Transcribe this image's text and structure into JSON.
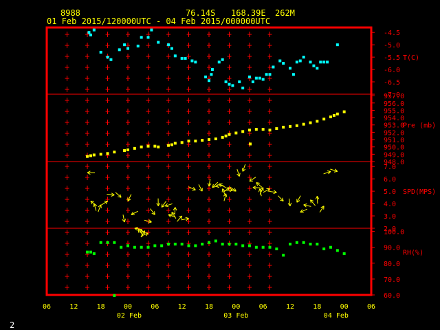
{
  "header": {
    "station": "8988",
    "lat": "76.14S",
    "lon": "168.39E",
    "elev": "262M",
    "period": "01 Feb 2015/120000UTC - 04 Feb 2015/000000UTC"
  },
  "page_number": "2",
  "colors": {
    "frame": "#ff0000",
    "text": "#ffff00",
    "temp": "#00ffff",
    "pres": "#ffff00",
    "wind": "#ffff00",
    "rh": "#00ff00",
    "label": "#ff0000"
  },
  "chart_data": [
    {
      "type": "scatter",
      "ylabel": "T(C)",
      "yticks": [
        "-4.5",
        "-5.0",
        "-5.5",
        "-6.0",
        "-6.5",
        "-7.0"
      ],
      "ylim": [
        -7.0,
        -4.3
      ],
      "series": [
        {
          "x_hours": [
            12.5,
            13,
            14,
            16,
            18,
            19,
            21.5,
            23,
            24,
            27,
            28,
            30,
            31,
            33,
            36,
            37,
            38,
            40,
            41,
            43,
            44,
            47,
            48,
            48.7,
            49,
            51,
            52,
            53,
            54,
            55,
            57,
            58,
            60,
            61,
            62,
            63,
            64,
            65,
            66,
            67,
            69,
            70,
            72,
            73,
            74,
            75,
            76,
            78,
            79,
            80,
            81,
            82,
            83,
            86
          ],
          "values": [
            -4.5,
            -4.6,
            -4.4,
            -5.3,
            -5.5,
            -5.6,
            -5.2,
            -5.0,
            -5.15,
            -5.05,
            -4.7,
            -4.7,
            -4.4,
            -4.9,
            -5.0,
            -5.15,
            -5.45,
            -5.55,
            -5.55,
            -5.65,
            -5.7,
            -6.3,
            -6.45,
            -6.2,
            -6.0,
            -5.7,
            -5.6,
            -6.5,
            -6.6,
            -6.65,
            -6.5,
            -6.75,
            -6.3,
            -6.5,
            -6.35,
            -6.35,
            -6.4,
            -6.2,
            -6.2,
            -5.9,
            -5.65,
            -5.75,
            -5.95,
            -6.2,
            -5.7,
            -5.65,
            -5.5,
            -5.7,
            -5.85,
            -5.95,
            -5.7,
            -5.7,
            -5.7,
            -5.0
          ]
        }
      ]
    },
    {
      "type": "scatter",
      "ylabel": "Pre (mb)",
      "yticks": [
        "957.0",
        "956.0",
        "955.0",
        "954.0",
        "953.0",
        "952.0",
        "951.0",
        "950.0",
        "949.0",
        "948.0"
      ],
      "ylim": [
        948.0,
        957.2
      ],
      "series": [
        {
          "x_hours": [
            12,
            13,
            14,
            16,
            18,
            20,
            23,
            24,
            26,
            28,
            30,
            32,
            33,
            36,
            37,
            38,
            40,
            42,
            44,
            46,
            48,
            50,
            52,
            53,
            54,
            56,
            58,
            60,
            60.2,
            62,
            64,
            66,
            68,
            70,
            72,
            74,
            76,
            78,
            80,
            82,
            84,
            85,
            86,
            88
          ],
          "values": [
            948.7,
            948.8,
            948.9,
            949.0,
            949.1,
            949.3,
            949.5,
            949.6,
            949.8,
            950.0,
            950.1,
            950.1,
            950.0,
            950.2,
            950.3,
            950.5,
            950.6,
            950.8,
            950.8,
            950.9,
            951.0,
            951.1,
            951.3,
            951.5,
            951.7,
            951.9,
            952.1,
            952.3,
            950.4,
            952.4,
            952.4,
            952.3,
            952.5,
            952.7,
            952.8,
            952.9,
            953.1,
            953.3,
            953.5,
            953.8,
            954.1,
            954.3,
            954.5,
            954.8
          ]
        }
      ]
    },
    {
      "type": "scatter",
      "ylabel": "SPD(MPS)",
      "yticks": [
        "7.0",
        "6.0",
        "5.0",
        "4.0",
        "3.0",
        "2.0"
      ],
      "ylim": [
        2.0,
        7.4
      ],
      "series": [
        {
          "x_hours": [
            12,
            13,
            14,
            16,
            18,
            20,
            22,
            23,
            24,
            25,
            26,
            27,
            28,
            29,
            30,
            31,
            32,
            33,
            34,
            35,
            36,
            37,
            38,
            40,
            42,
            44,
            46,
            48,
            49,
            50,
            51,
            52,
            53,
            54,
            55,
            56,
            57,
            58,
            60,
            61,
            62,
            63,
            64,
            66,
            68,
            70,
            72,
            74,
            75,
            76,
            78,
            80,
            82,
            84,
            86
          ],
          "values": [
            6.5,
            4.2,
            4.0,
            3.9,
            4.2,
            4.7,
            4.5,
            2.5,
            4.2,
            3.1,
            2.0,
            1.9,
            1.9,
            1.8,
            1.6,
            2.5,
            3.1,
            3.8,
            3.7,
            3.8,
            3.1,
            3.3,
            3.7,
            3.0,
            2.8,
            5.1,
            5.0,
            5.4,
            5.3,
            5.4,
            5.6,
            5.2,
            4.8,
            5.3,
            5.1,
            5.0,
            6.2,
            6.6,
            5.8,
            5.3,
            5.7,
            5.2,
            5.3,
            5.2,
            4.9,
            4.2,
            3.8,
            4.1,
            3.3,
            3.9,
            4.3,
            4.6,
            3.8,
            6.6,
            6.6
          ]
        }
      ]
    },
    {
      "type": "scatter",
      "ylabel": "RH(%)",
      "yticks": [
        "100.0",
        "90.0",
        "80.0",
        "70.0",
        "60.0"
      ],
      "ylim": [
        60.0,
        102.0
      ],
      "series": [
        {
          "x_hours": [
            12,
            13,
            14,
            16,
            18,
            20,
            22,
            24,
            26,
            28,
            30,
            32,
            34,
            36,
            38,
            40,
            42,
            44,
            46,
            48,
            50,
            52,
            54,
            56,
            58,
            60,
            62,
            64,
            66,
            68,
            70,
            72,
            74,
            76,
            78,
            80,
            82,
            84,
            86,
            88
          ],
          "values": [
            87,
            87,
            86,
            93,
            93,
            93,
            90,
            91,
            90,
            90,
            90,
            91,
            91,
            92,
            92,
            92,
            91,
            91,
            92,
            93,
            94,
            92,
            92,
            92,
            91,
            91,
            90,
            90,
            90,
            89,
            85,
            92,
            93,
            93,
            92,
            92,
            89,
            90,
            88,
            86
          ]
        }
      ]
    }
  ],
  "x_axis": {
    "ticks": [
      "06",
      "12",
      "18",
      "00",
      "06",
      "12",
      "18",
      "00",
      "06",
      "12",
      "18",
      "00",
      "06"
    ],
    "dates": [
      "02 Feb",
      "03 Feb",
      "04 Feb"
    ]
  }
}
